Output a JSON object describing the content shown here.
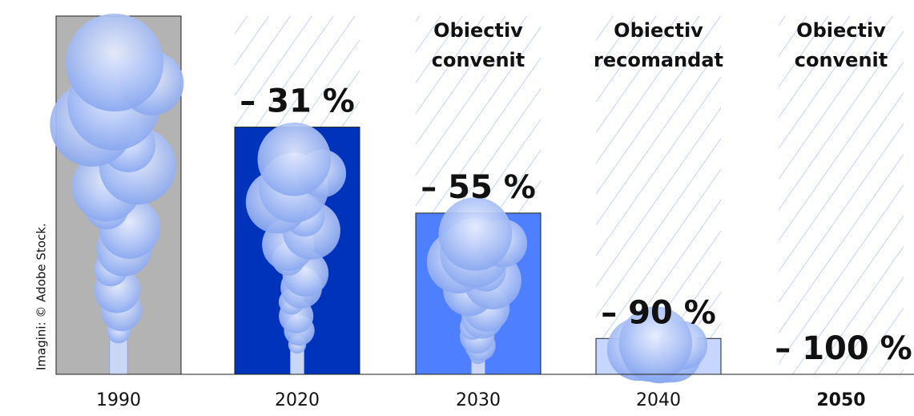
{
  "chart_data": {
    "type": "bar",
    "categories": [
      "1990",
      "2020",
      "2030",
      "2040",
      "2050"
    ],
    "values": [
      0,
      -31,
      -55,
      -90,
      -100
    ],
    "value_labels": [
      null,
      "– 31 %",
      "– 55 %",
      "– 90 %",
      "– 100 %"
    ],
    "colors": [
      "#b3b3b3",
      "#0033bb",
      "#4d7fff",
      "#c6d6ff",
      null
    ],
    "hatched": [
      false,
      true,
      true,
      true,
      true
    ],
    "highlight": [
      false,
      false,
      false,
      false,
      true
    ],
    "annotations": [
      null,
      null,
      [
        "Obiectiv",
        "convenit"
      ],
      [
        "Obiectiv",
        "recomandat"
      ],
      [
        "Obiectiv",
        "convenit"
      ]
    ],
    "ylim": [
      -100,
      0
    ],
    "credit": "Imagini: © Adobe Stock."
  }
}
